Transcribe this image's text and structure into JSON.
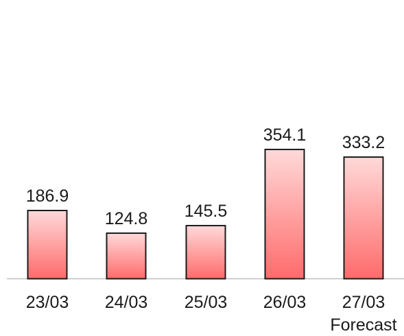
{
  "chart_data": {
    "type": "bar",
    "categories": [
      "23/03",
      "24/03",
      "25/03",
      "26/03",
      "27/03"
    ],
    "category_sublabels": [
      "",
      "",
      "",
      "",
      "Forecast"
    ],
    "values": [
      186.9,
      124.8,
      145.5,
      354.1,
      333.2
    ],
    "data_labels": [
      "186.9",
      "124.8",
      "145.5",
      "354.1",
      "333.2"
    ],
    "title": "",
    "xlabel": "",
    "ylabel": "",
    "ylim": [
      0,
      380
    ],
    "grid": false,
    "legend": "none",
    "colors": {
      "bar_top": "#ffd9d9",
      "bar_bottom": "#ff6b6b",
      "bar_border": "#1a1a1a",
      "baseline": "#bfbfbf",
      "text": "#1a1a1a"
    }
  }
}
